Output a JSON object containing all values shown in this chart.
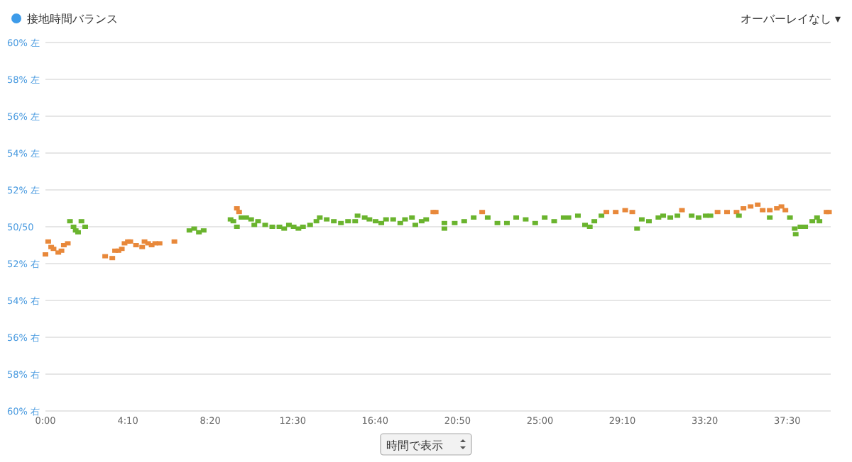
{
  "chart_data": {
    "type": "scatter",
    "xlim": [
      0,
      39.7
    ],
    "xticks": [
      {
        "value": 0,
        "label": "0:00"
      },
      {
        "value": 4.1667,
        "label": "4:10"
      },
      {
        "value": 8.3333,
        "label": "8:20"
      },
      {
        "value": 12.5,
        "label": "12:30"
      },
      {
        "value": 16.6667,
        "label": "16:40"
      },
      {
        "value": 20.8333,
        "label": "20:50"
      },
      {
        "value": 25,
        "label": "25:00"
      },
      {
        "value": 29.1667,
        "label": "29:10"
      },
      {
        "value": 33.3333,
        "label": "33:20"
      },
      {
        "value": 37.5,
        "label": "37:30"
      }
    ],
    "ylim": [
      40,
      60
    ],
    "yticks": [
      {
        "value": 60,
        "label": "60% 左"
      },
      {
        "value": 58,
        "label": "58% 左"
      },
      {
        "value": 56,
        "label": "56% 左"
      },
      {
        "value": 54,
        "label": "54% 左"
      },
      {
        "value": 52,
        "label": "52% 左"
      },
      {
        "value": 50,
        "label": "50/50"
      }
    ],
    "y2lim": [
      60,
      40
    ],
    "y2ticks": [
      {
        "value": 52,
        "label": "52% 右"
      },
      {
        "value": 54,
        "label": "54% 右"
      },
      {
        "value": 56,
        "label": "56% 右"
      },
      {
        "value": 58,
        "label": "58% 右"
      },
      {
        "value": 60,
        "label": "60% 右"
      }
    ],
    "grid": "y",
    "legend": "top left",
    "marker": "square",
    "annotations": [
      "オーバーレイなし ▾",
      "時間で表示"
    ],
    "series": [
      {
        "name": "接地時間バランス",
        "color": "#3d9be9",
        "x": [
          0.0,
          0.14,
          0.29,
          0.41,
          0.65,
          0.81,
          0.93,
          1.13,
          1.24,
          1.42,
          1.53,
          1.65,
          1.82,
          2.01,
          3.02,
          3.38,
          3.52,
          3.69,
          3.86,
          4.0,
          4.17,
          4.29,
          4.58,
          4.89,
          5.01,
          5.19,
          5.37,
          5.55,
          5.77,
          6.52,
          7.28,
          7.52,
          7.76,
          8.0,
          9.36,
          9.5,
          9.68,
          9.68,
          9.79,
          9.91,
          10.15,
          10.4,
          10.56,
          10.75,
          11.11,
          11.47,
          11.83,
          12.07,
          12.31,
          12.55,
          12.79,
          13.02,
          13.38,
          13.7,
          13.87,
          14.22,
          14.58,
          14.94,
          15.3,
          15.66,
          15.78,
          16.14,
          16.38,
          16.69,
          16.98,
          17.22,
          17.58,
          17.94,
          18.18,
          18.53,
          18.7,
          19.02,
          19.25,
          19.61,
          19.73,
          20.17,
          20.17,
          20.69,
          21.17,
          21.65,
          22.08,
          22.36,
          22.85,
          23.33,
          23.8,
          24.28,
          24.76,
          25.24,
          25.72,
          26.2,
          26.44,
          26.92,
          27.28,
          27.52,
          27.75,
          28.11,
          28.36,
          28.83,
          29.31,
          29.67,
          29.91,
          30.15,
          30.51,
          30.99,
          31.23,
          31.59,
          31.95,
          32.18,
          32.67,
          33.02,
          33.38,
          33.62,
          33.98,
          34.46,
          34.94,
          35.06,
          35.29,
          35.65,
          36.01,
          36.26,
          36.62,
          36.62,
          36.98,
          37.21,
          37.41,
          37.64,
          37.88,
          37.93,
          38.17,
          38.41,
          38.77,
          39.01,
          39.13,
          39.49,
          39.61
        ],
        "values": [
          48.5,
          49.2,
          48.9,
          48.8,
          48.6,
          48.7,
          49.0,
          49.1,
          50.3,
          50.0,
          49.8,
          49.7,
          50.3,
          50.0,
          48.4,
          48.3,
          48.7,
          48.7,
          48.8,
          49.1,
          49.2,
          49.2,
          49.0,
          48.9,
          49.2,
          49.1,
          49.0,
          49.1,
          49.1,
          49.2,
          49.8,
          49.9,
          49.7,
          49.8,
          50.4,
          50.3,
          50.0,
          51.0,
          50.8,
          50.5,
          50.5,
          50.4,
          50.1,
          50.3,
          50.1,
          50.0,
          50.0,
          49.9,
          50.1,
          50.0,
          49.9,
          50.0,
          50.1,
          50.3,
          50.5,
          50.4,
          50.3,
          50.2,
          50.3,
          50.3,
          50.6,
          50.5,
          50.4,
          50.3,
          50.2,
          50.4,
          50.4,
          50.2,
          50.4,
          50.5,
          50.1,
          50.3,
          50.4,
          50.8,
          50.8,
          50.2,
          49.9,
          50.2,
          50.3,
          50.5,
          50.8,
          50.5,
          50.2,
          50.2,
          50.5,
          50.4,
          50.2,
          50.5,
          50.3,
          50.5,
          50.5,
          50.6,
          50.1,
          50.0,
          50.3,
          50.6,
          50.8,
          50.8,
          50.9,
          50.8,
          49.9,
          50.4,
          50.3,
          50.5,
          50.6,
          50.5,
          50.6,
          50.9,
          50.6,
          50.5,
          50.6,
          50.6,
          50.8,
          50.8,
          50.8,
          50.6,
          51.0,
          51.1,
          51.2,
          50.9,
          50.9,
          50.5,
          51.0,
          51.1,
          50.9,
          50.5,
          49.9,
          49.6,
          50.0,
          50.0,
          50.3,
          50.5,
          50.3,
          50.8,
          50.8
        ],
        "colors": [
          "#e8883a",
          "#e8883a",
          "#e8883a",
          "#e8883a",
          "#e8883a",
          "#e8883a",
          "#e8883a",
          "#e8883a",
          "#6ab42e",
          "#6ab42e",
          "#6ab42e",
          "#6ab42e",
          "#6ab42e",
          "#6ab42e",
          "#e8883a",
          "#e8883a",
          "#e8883a",
          "#e8883a",
          "#e8883a",
          "#e8883a",
          "#e8883a",
          "#e8883a",
          "#e8883a",
          "#e8883a",
          "#e8883a",
          "#e8883a",
          "#e8883a",
          "#e8883a",
          "#e8883a",
          "#e8883a",
          "#6ab42e",
          "#6ab42e",
          "#6ab42e",
          "#6ab42e",
          "#6ab42e",
          "#6ab42e",
          "#6ab42e",
          "#e8883a",
          "#e8883a",
          "#6ab42e",
          "#6ab42e",
          "#6ab42e",
          "#6ab42e",
          "#6ab42e",
          "#6ab42e",
          "#6ab42e",
          "#6ab42e",
          "#6ab42e",
          "#6ab42e",
          "#6ab42e",
          "#6ab42e",
          "#6ab42e",
          "#6ab42e",
          "#6ab42e",
          "#6ab42e",
          "#6ab42e",
          "#6ab42e",
          "#6ab42e",
          "#6ab42e",
          "#6ab42e",
          "#6ab42e",
          "#6ab42e",
          "#6ab42e",
          "#6ab42e",
          "#6ab42e",
          "#6ab42e",
          "#6ab42e",
          "#6ab42e",
          "#6ab42e",
          "#6ab42e",
          "#6ab42e",
          "#6ab42e",
          "#6ab42e",
          "#e8883a",
          "#e8883a",
          "#6ab42e",
          "#6ab42e",
          "#6ab42e",
          "#6ab42e",
          "#6ab42e",
          "#e8883a",
          "#6ab42e",
          "#6ab42e",
          "#6ab42e",
          "#6ab42e",
          "#6ab42e",
          "#6ab42e",
          "#6ab42e",
          "#6ab42e",
          "#6ab42e",
          "#6ab42e",
          "#6ab42e",
          "#6ab42e",
          "#6ab42e",
          "#6ab42e",
          "#6ab42e",
          "#e8883a",
          "#e8883a",
          "#e8883a",
          "#e8883a",
          "#6ab42e",
          "#6ab42e",
          "#6ab42e",
          "#6ab42e",
          "#6ab42e",
          "#6ab42e",
          "#6ab42e",
          "#e8883a",
          "#6ab42e",
          "#6ab42e",
          "#6ab42e",
          "#6ab42e",
          "#e8883a",
          "#e8883a",
          "#e8883a",
          "#6ab42e",
          "#e8883a",
          "#e8883a",
          "#e8883a",
          "#e8883a",
          "#e8883a",
          "#6ab42e",
          "#e8883a",
          "#e8883a",
          "#e8883a",
          "#6ab42e",
          "#6ab42e",
          "#6ab42e",
          "#6ab42e",
          "#6ab42e",
          "#6ab42e",
          "#6ab42e",
          "#6ab42e",
          "#e8883a",
          "#e8883a"
        ]
      }
    ]
  }
}
